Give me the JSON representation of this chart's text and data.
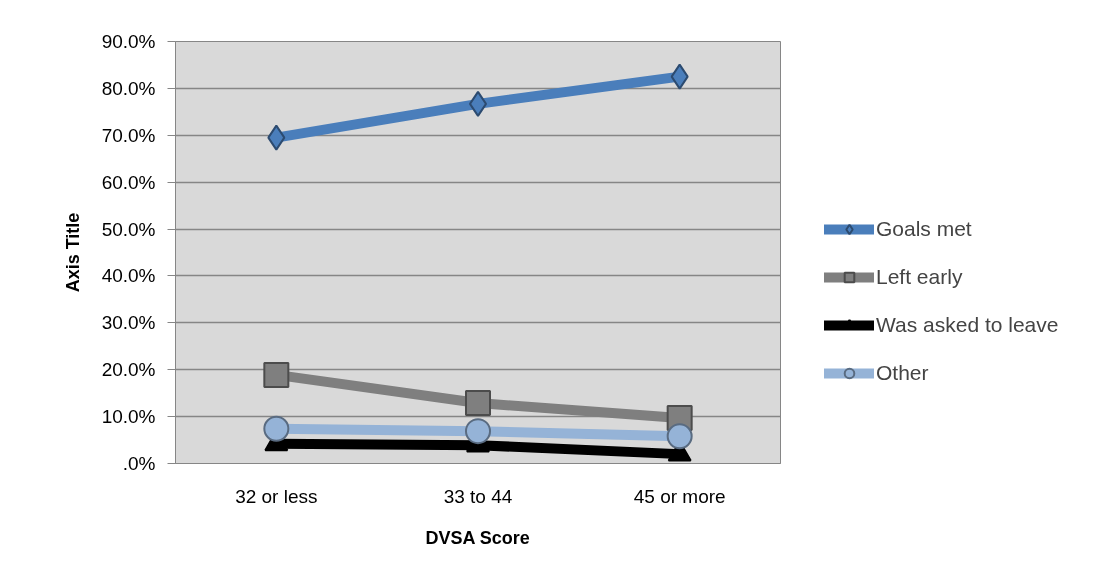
{
  "chart_data": {
    "type": "line",
    "xlabel": "DVSA Score",
    "ylabel": "Axis Title",
    "categories": [
      "32 or less",
      "33 to 44",
      "45 or more"
    ],
    "series": [
      {
        "name": "Goals met",
        "color": "#4a7ebb",
        "marker": "diamond",
        "values": [
          69.5,
          76.7,
          82.5
        ]
      },
      {
        "name": "Left early",
        "color": "#7f7f7f",
        "marker": "square",
        "values": [
          18.9,
          12.9,
          9.7
        ]
      },
      {
        "name": "Was asked to leave",
        "color": "#000000",
        "marker": "triangle",
        "values": [
          4.2,
          3.9,
          2.0
        ]
      },
      {
        "name": "Other",
        "color": "#95b3d7",
        "marker": "circle",
        "values": [
          7.4,
          6.9,
          5.8
        ]
      }
    ],
    "ylim": [
      0,
      90
    ],
    "yticks": [
      {
        "value": 0,
        "label": ".0%"
      },
      {
        "value": 10,
        "label": "10.0%"
      },
      {
        "value": 20,
        "label": "20.0%"
      },
      {
        "value": 30,
        "label": "30.0%"
      },
      {
        "value": 40,
        "label": "40.0%"
      },
      {
        "value": 50,
        "label": "50.0%"
      },
      {
        "value": 60,
        "label": "60.0%"
      },
      {
        "value": 70,
        "label": "70.0%"
      },
      {
        "value": 80,
        "label": "80.0%"
      },
      {
        "value": 90,
        "label": "90.0%"
      }
    ],
    "grid": "y",
    "legend": "right"
  }
}
